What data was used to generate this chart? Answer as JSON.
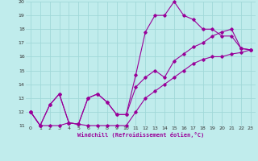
{
  "xlabel": "Windchill (Refroidissement éolien,°C)",
  "xlim": [
    -0.5,
    23.5
  ],
  "ylim": [
    11,
    20
  ],
  "xticks": [
    0,
    1,
    2,
    3,
    4,
    5,
    6,
    7,
    8,
    9,
    10,
    11,
    12,
    13,
    14,
    15,
    16,
    17,
    18,
    19,
    20,
    21,
    22,
    23
  ],
  "yticks": [
    11,
    12,
    13,
    14,
    15,
    16,
    17,
    18,
    19,
    20
  ],
  "bg_color": "#c0ecec",
  "grid_color": "#a0d8d8",
  "line_color": "#990099",
  "line1_x": [
    0,
    1,
    2,
    3,
    4,
    5,
    6,
    7,
    8,
    9,
    10,
    11,
    12,
    13,
    14,
    15,
    16,
    17,
    18,
    19,
    20,
    21,
    22,
    23
  ],
  "line1_y": [
    12,
    11,
    12.5,
    13.3,
    11.2,
    11.1,
    13.0,
    13.3,
    12.7,
    11.8,
    11.8,
    14.7,
    17.8,
    19.0,
    19.0,
    20.0,
    19.0,
    18.7,
    18.0,
    18.0,
    17.5,
    17.5,
    16.6,
    16.5
  ],
  "line2_x": [
    0,
    1,
    2,
    3,
    4,
    5,
    6,
    7,
    8,
    9,
    10,
    11,
    12,
    13,
    14,
    15,
    16,
    17,
    18,
    19,
    20,
    21,
    22,
    23
  ],
  "line2_y": [
    12,
    11,
    12.5,
    13.3,
    11.2,
    11.1,
    13.0,
    13.3,
    12.7,
    11.8,
    11.8,
    13.8,
    14.5,
    15.0,
    14.5,
    15.7,
    16.2,
    16.7,
    17.0,
    17.5,
    17.8,
    18.0,
    16.6,
    16.5
  ],
  "line3_x": [
    0,
    1,
    2,
    3,
    4,
    5,
    6,
    7,
    8,
    9,
    10,
    11,
    12,
    13,
    14,
    15,
    16,
    17,
    18,
    19,
    20,
    21,
    22,
    23
  ],
  "line3_y": [
    12,
    11,
    11,
    11,
    11.2,
    11.1,
    11,
    11,
    11,
    11,
    11,
    12.0,
    13.0,
    13.5,
    14.0,
    14.5,
    15.0,
    15.5,
    15.8,
    16.0,
    16.0,
    16.2,
    16.3,
    16.5
  ]
}
